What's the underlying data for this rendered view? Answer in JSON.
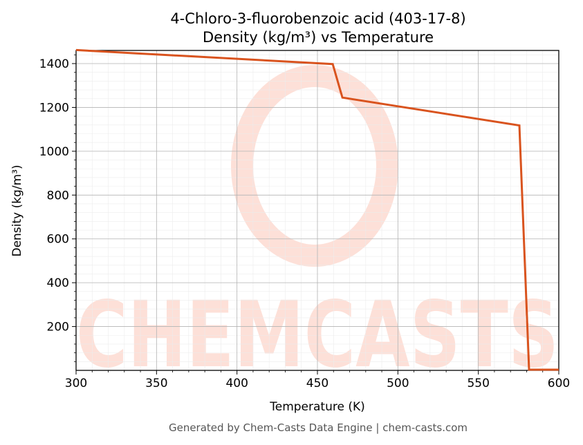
{
  "chart_data": {
    "type": "line",
    "title": "4-Chloro-3-fluorobenzoic acid (403-17-8)",
    "subtitle": "Density (kg/m³) vs Temperature",
    "xlabel": "Temperature (K)",
    "ylabel": "Density (kg/m³)",
    "xlim": [
      300,
      600
    ],
    "ylim": [
      0,
      1460
    ],
    "xticks": [
      300,
      350,
      400,
      450,
      500,
      550,
      600
    ],
    "yticks": [
      200,
      400,
      600,
      800,
      1000,
      1200,
      1400
    ],
    "grid": true,
    "line_color": "#d9531e",
    "series": [
      {
        "x": [
          300,
          459.5,
          465.5,
          575.5,
          581.5,
          600
        ],
        "y": [
          1462,
          1398,
          1245,
          1118,
          3,
          3
        ]
      }
    ]
  },
  "watermark": {
    "text": "CHEMCASTS",
    "color": "#fde0d8"
  },
  "footer": "Generated by Chem-Casts Data Engine | chem-casts.com"
}
